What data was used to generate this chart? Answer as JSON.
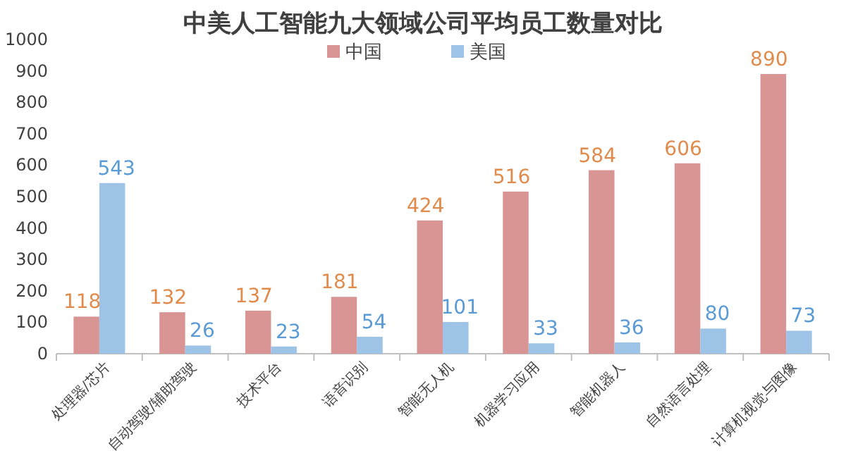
{
  "chart_data": {
    "type": "bar",
    "title": "中美人工智能九大领域公司平均员工数量对比",
    "categories": [
      "处理器/芯片",
      "自动驾驶/辅助驾驶",
      "技术平台",
      "语音识别",
      "智能无人机",
      "机器学习应用",
      "智能机器人",
      "自然语言处理",
      "计算机视觉与图像"
    ],
    "series": [
      {
        "name": "中国",
        "color": "#d99594",
        "values": [
          118,
          132,
          137,
          181,
          424,
          516,
          584,
          606,
          890
        ]
      },
      {
        "name": "美国",
        "color": "#9dc3e6",
        "values": [
          543,
          26,
          23,
          54,
          101,
          33,
          36,
          80,
          73
        ]
      }
    ],
    "ylim": [
      0,
      1000
    ],
    "yticks": [
      0,
      100,
      200,
      300,
      400,
      500,
      600,
      700,
      800,
      900,
      1000
    ],
    "data_labels": true,
    "legend": "top",
    "grid": false
  }
}
